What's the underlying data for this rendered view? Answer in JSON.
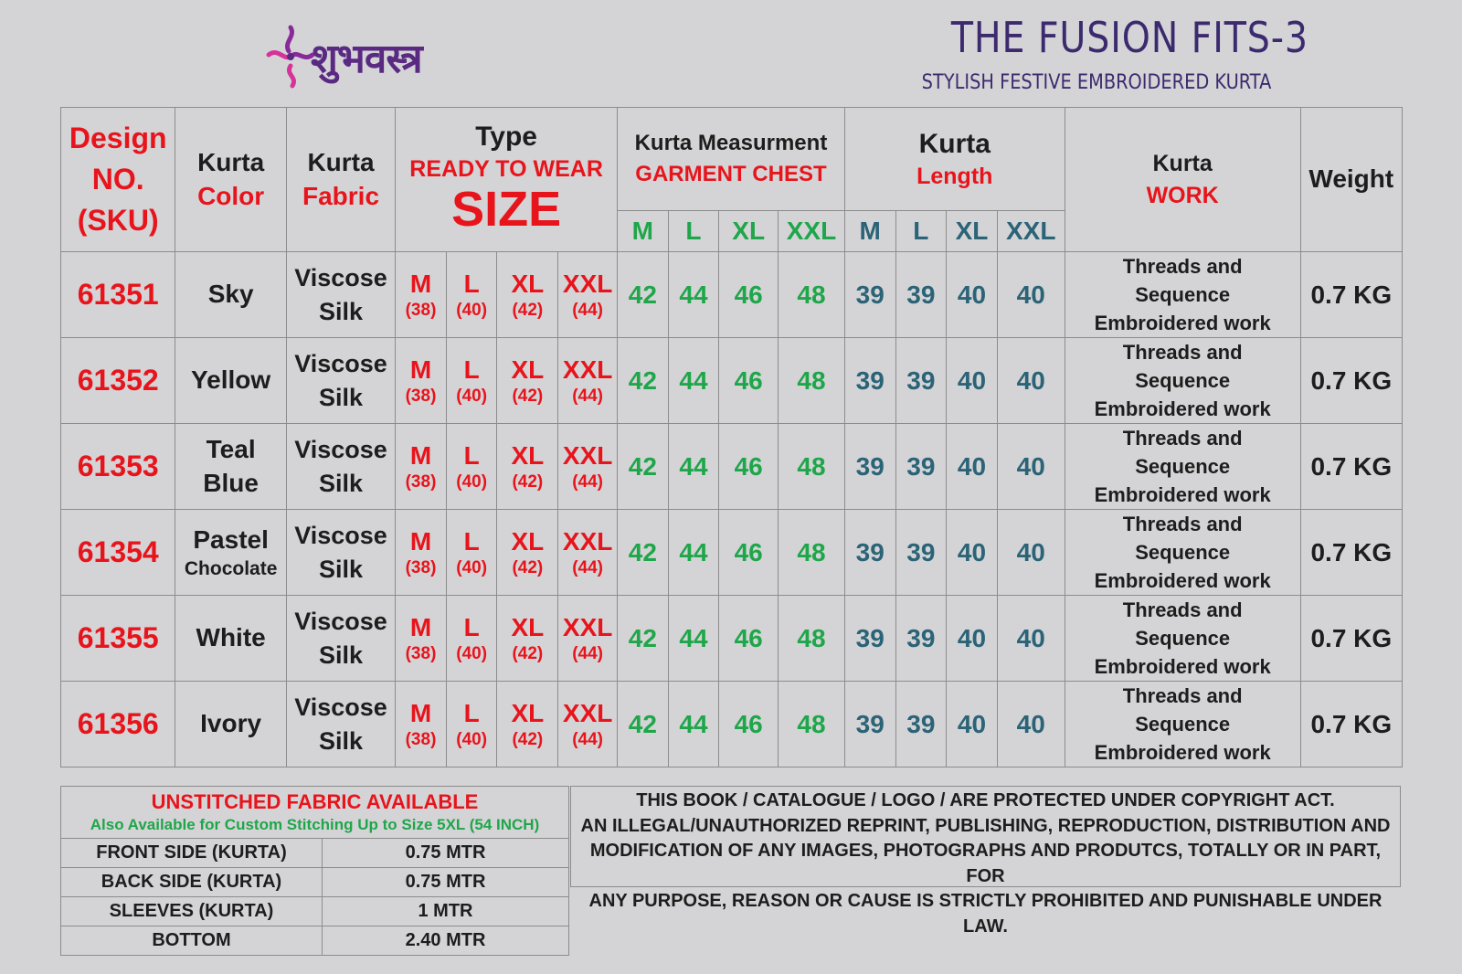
{
  "brand": {
    "logo_text": "शुभवस्त्र"
  },
  "header": {
    "title": "THE FUSION FITS-3",
    "subtitle": "STYLISH FESTIVE EMBROIDERED KURTA"
  },
  "colors": {
    "red": "#e8141c",
    "green": "#1fa64a",
    "teal": "#2b6377",
    "text": "#1d1d1d",
    "background": "#d4d4d6"
  },
  "table": {
    "design_header": [
      "Design",
      "NO.",
      "(SKU)"
    ],
    "color_header": [
      "Kurta",
      "Color"
    ],
    "fabric_header": [
      "Kurta",
      "Fabric"
    ],
    "type_header": {
      "line1": "Type",
      "line2": "READY TO WEAR",
      "line3": "SIZE"
    },
    "chest_header": {
      "line1": "Kurta Measurment",
      "line2": "GARMENT CHEST"
    },
    "length_header": {
      "line1": "Kurta",
      "line2": "Length"
    },
    "work_header": {
      "line1": "Kurta",
      "line2": "WORK"
    },
    "weight_header": "Weight",
    "size_labels": [
      "M",
      "L",
      "XL",
      "XXL"
    ],
    "size_values": [
      "(38)",
      "(40)",
      "(42)",
      "(44)"
    ],
    "chest_values": [
      "42",
      "44",
      "46",
      "48"
    ],
    "length_values": [
      "39",
      "39",
      "40",
      "40"
    ],
    "rows": [
      {
        "sku": "61351",
        "color": [
          "Sky",
          ""
        ],
        "fabric": [
          "Viscose",
          "Silk"
        ],
        "work": [
          "Threads and",
          "Sequence",
          "Embroidered work"
        ],
        "weight": "0.7 KG"
      },
      {
        "sku": "61352",
        "color": [
          "Yellow",
          ""
        ],
        "fabric": [
          "Viscose",
          "Silk"
        ],
        "work": [
          "Threads and",
          "Sequence",
          "Embroidered work"
        ],
        "weight": "0.7 KG"
      },
      {
        "sku": "61353",
        "color": [
          "Teal",
          "Blue"
        ],
        "fabric": [
          "Viscose",
          "Silk"
        ],
        "work": [
          "Threads and",
          "Sequence",
          "Embroidered work"
        ],
        "weight": "0.7 KG"
      },
      {
        "sku": "61354",
        "color": [
          "Pastel",
          "Chocolate"
        ],
        "fabric": [
          "Viscose",
          "Silk"
        ],
        "work": [
          "Threads and",
          "Sequence",
          "Embroidered work"
        ],
        "weight": "0.7 KG"
      },
      {
        "sku": "61355",
        "color": [
          "White",
          ""
        ],
        "fabric": [
          "Viscose",
          "Silk"
        ],
        "work": [
          "Threads and",
          "Sequence",
          "Embroidered work"
        ],
        "weight": "0.7 KG"
      },
      {
        "sku": "61356",
        "color": [
          "Ivory",
          ""
        ],
        "fabric": [
          "Viscose",
          "Silk"
        ],
        "work": [
          "Threads and",
          "Sequence",
          "Embroidered work"
        ],
        "weight": "0.7 KG"
      }
    ]
  },
  "fabric": {
    "title": "UNSTITCHED FABRIC AVAILABLE",
    "subtitle": "Also Available for Custom Stitching Up to Size 5XL (54 INCH)",
    "rows": [
      {
        "label": "FRONT SIDE (KURTA)",
        "value": "0.75 MTR"
      },
      {
        "label": "BACK SIDE (KURTA)",
        "value": "0.75 MTR"
      },
      {
        "label": "SLEEVES (KURTA)",
        "value": "1 MTR"
      },
      {
        "label": "BOTTOM",
        "value": "2.40 MTR"
      }
    ]
  },
  "copyright": {
    "lines": [
      "THIS BOOK / CATALOGUE  / LOGO / ARE  PROTECTED UNDER COPYRIGHT ACT.",
      "AN ILLEGAL/UNAUTHORIZED REPRINT, PUBLISHING, REPRODUCTION, DISTRIBUTION AND",
      "MODIFICATION OF ANY IMAGES, PHOTOGRAPHS AND PRODUTCS,  TOTALLY OR IN PART, FOR",
      "ANY PURPOSE, REASON OR CAUSE IS STRICTLY PROHIBITED AND PUNISHABLE UNDER LAW."
    ]
  }
}
